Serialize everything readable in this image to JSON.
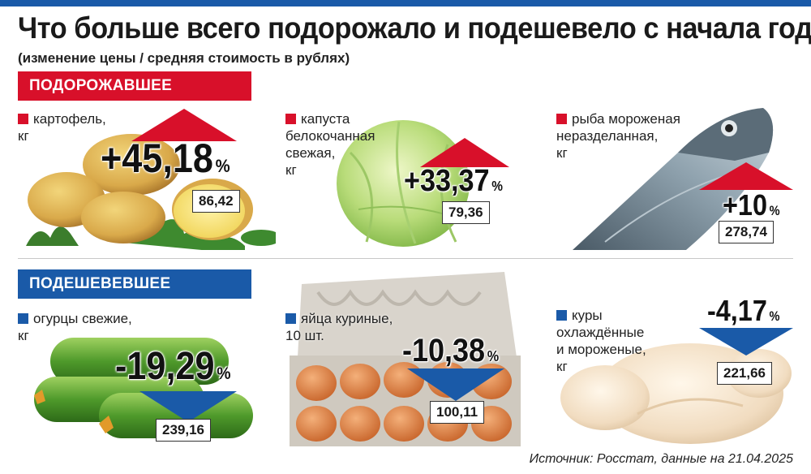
{
  "title": "Что больше всего подорожало и подешевело с начала года",
  "subtitle": "(изменение цены / средняя стоимость в рублях)",
  "sections": {
    "up_label": "ПОДОРОЖАВШЕЕ",
    "down_label": "ПОДЕШЕВЕВШЕЕ"
  },
  "colors": {
    "up": "#d8102a",
    "down": "#1a5aa8"
  },
  "items_up": [
    {
      "name": "картофель,",
      "unit": "кг",
      "change": "+45,18",
      "percent_sign": "%",
      "price": "86,42"
    },
    {
      "name": "капуста белокочанная свежая,",
      "name_lines": [
        "капуста",
        "белокочанная",
        "свежая,"
      ],
      "unit": "кг",
      "change": "+33,37",
      "percent_sign": "%",
      "price": "79,36"
    },
    {
      "name": "рыба мороженая неразделанная,",
      "name_lines": [
        "рыба мороженая",
        "неразделанная,"
      ],
      "unit": "кг",
      "change": "+10",
      "percent_sign": "%",
      "price": "278,74"
    }
  ],
  "items_down": [
    {
      "name": "огурцы свежие,",
      "unit": "кг",
      "change": "-19,29",
      "percent_sign": "%",
      "price": "239,16"
    },
    {
      "name": "яйца куриные,",
      "unit": "10 шт.",
      "change": "-10,38",
      "percent_sign": "%",
      "price": "100,11"
    },
    {
      "name": "куры охлаждённые и мороженые,",
      "name_lines": [
        "куры",
        "охлаждённые",
        "и мороженые,"
      ],
      "unit": "кг",
      "change": "-4,17",
      "percent_sign": "%",
      "price": "221,66"
    }
  ],
  "source": "Источник: Росстат, данные на 21.04.2025"
}
